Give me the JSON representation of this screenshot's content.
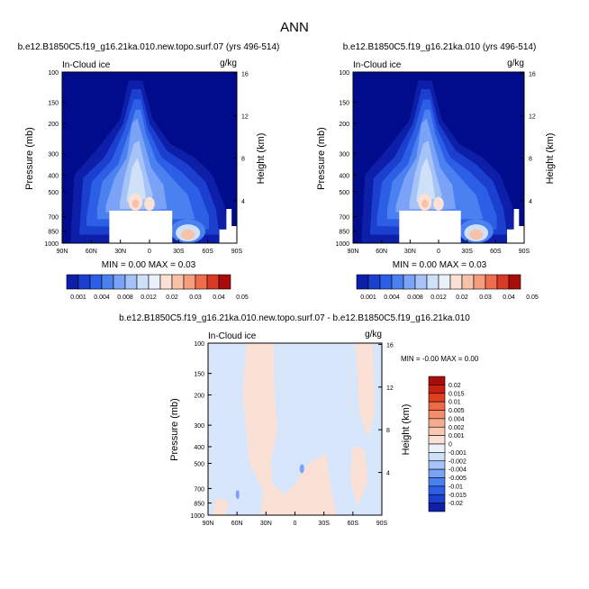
{
  "page": {
    "title": "ANN"
  },
  "colors": {
    "ocean": "#000c8c",
    "levels": [
      "#0d1fa8",
      "#1b3fcf",
      "#2c5ee6",
      "#4a80f0",
      "#7aa2f6",
      "#a6c3f8",
      "#cfe0f9",
      "#eaf1fb",
      "#fbe1d5",
      "#f8c2aa",
      "#f59d7c",
      "#ef6c4c",
      "#d93a25",
      "#a80d0d"
    ],
    "diff_pos": "#fbe1d5",
    "diff_neg": "#d7e6fb",
    "diff_neg2": "#7aa2f6"
  },
  "chart_data": [
    {
      "type": "heatmap",
      "id": "panel1",
      "title": "b.e12.B1850C5.f19_g16.21ka.010.new.topo.surf.07 (yrs 496-514)",
      "subtitle_left": "In-Cloud ice",
      "subtitle_right": "g/kg",
      "ylabel": "Pressure (mb)",
      "ylabel_right": "Height (km)",
      "x_ticks": [
        "90N",
        "60N",
        "30N",
        "0",
        "30S",
        "60S",
        "90S"
      ],
      "y_ticks": [
        "100",
        "150",
        "200",
        "300",
        "400",
        "500",
        "700",
        "850",
        "1000"
      ],
      "y_right_ticks": [
        "16",
        "12",
        "8",
        "4"
      ],
      "stats": "MIN =   0.00  MAX =   0.03",
      "colorbar_labels": [
        "0.001",
        "0.004",
        "0.008",
        "0.012",
        "0.02",
        "0.03",
        "0.04",
        "0.05"
      ]
    },
    {
      "type": "heatmap",
      "id": "panel2",
      "title": "b.e12.B1850C5.f19_g16.21ka.010 (yrs 496-514)",
      "subtitle_left": "In-Cloud ice",
      "subtitle_right": "g/kg",
      "ylabel": "Pressure (mb)",
      "ylabel_right": "Height (km)",
      "x_ticks": [
        "90N",
        "60N",
        "30N",
        "0",
        "30S",
        "60S",
        "90S"
      ],
      "y_ticks": [
        "100",
        "150",
        "200",
        "300",
        "400",
        "500",
        "700",
        "850",
        "1000"
      ],
      "y_right_ticks": [
        "16",
        "12",
        "8",
        "4"
      ],
      "stats": "MIN =   0.00  MAX =   0.03",
      "colorbar_labels": [
        "0.001",
        "0.004",
        "0.008",
        "0.012",
        "0.02",
        "0.03",
        "0.04",
        "0.05"
      ]
    },
    {
      "type": "heatmap",
      "id": "panel3",
      "title": "b.e12.B1850C5.f19_g16.21ka.010.new.topo.surf.07 - b.e12.B1850C5.f19_g16.21ka.010",
      "subtitle_left": "In-Cloud ice",
      "subtitle_right": "g/kg",
      "ylabel": "Pressure (mb)",
      "ylabel_right": "Height (km)",
      "x_ticks": [
        "90N",
        "60N",
        "30N",
        "0",
        "30S",
        "60S",
        "90S"
      ],
      "y_ticks": [
        "100",
        "150",
        "200",
        "300",
        "400",
        "500",
        "700",
        "850",
        "1000"
      ],
      "y_right_ticks": [
        "16",
        "12",
        "8",
        "4"
      ],
      "stats": "MIN =  -0.00  MAX =   0.00",
      "colorbar_labels": [
        "0.02",
        "0.015",
        "0.01",
        "0.005",
        "0.004",
        "0.002",
        "0.001",
        "0",
        "-0.001",
        "-0.002",
        "-0.004",
        "-0.005",
        "-0.01",
        "-0.015",
        "-0.02"
      ]
    }
  ]
}
